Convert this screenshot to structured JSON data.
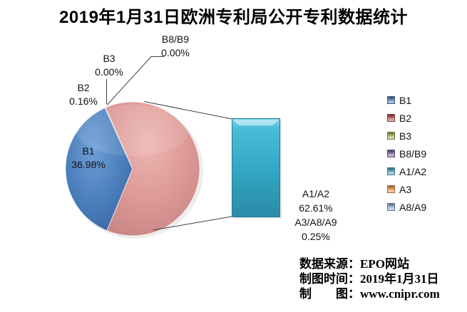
{
  "title": "2019年1月31日欧洲专利局公开专利数据统计",
  "chart_data": {
    "type": "pie",
    "subtype": "bar-of-pie",
    "title": "2019年1月31日欧洲专利局公开专利数据统计",
    "legend_position": "right",
    "grid": false,
    "pie_slices": [
      {
        "label": "B1",
        "pct": 36.98
      },
      {
        "label": "B2",
        "pct": 0.16
      },
      {
        "label": "B3",
        "pct": 0.0
      },
      {
        "label": "B8/B9",
        "pct": 0.0
      },
      {
        "label": "other (A1/A2 + A3/A8/A9, shown as bar)",
        "pct": 62.86
      }
    ],
    "bar_segments": [
      {
        "label": "A1/A2",
        "pct": 62.61
      },
      {
        "label": "A3/A8/A9",
        "pct": 0.25
      }
    ],
    "legend_entries": [
      "B1",
      "B2",
      "B3",
      "B8/B9",
      "A1/A2",
      "A3",
      "A8/A9"
    ]
  },
  "labels": {
    "b8b9": {
      "line1": "B8/B9",
      "line2": "0.00%"
    },
    "b3": {
      "line1": "B3",
      "line2": "0.00%"
    },
    "b2": {
      "line1": "B2",
      "line2": "0.16%"
    },
    "b1": {
      "line1": "B1",
      "line2": "36.98%"
    },
    "agroup": {
      "line1": "A1/A2",
      "line2": "62.61%",
      "line3": "A3/A8/A9",
      "line4": "0.25%"
    }
  },
  "legend": {
    "items": [
      {
        "label": "B1",
        "color": "#4f81bd"
      },
      {
        "label": "B2",
        "color": "#c0504d"
      },
      {
        "label": "B3",
        "color": "#9bbb59"
      },
      {
        "label": "B8/B9",
        "color": "#8064a2"
      },
      {
        "label": "A1/A2",
        "color": "#4bacc6"
      },
      {
        "label": "A3",
        "color": "#f79646"
      },
      {
        "label": "A8/A9",
        "color": "#95b3d7"
      }
    ]
  },
  "colors": {
    "pie_b1": "#4a7ebb",
    "pie_other": "#de9a98",
    "bar_fill": "#31aecb",
    "connector": "#404040"
  },
  "info": {
    "line1": "数据来源：EPO网站",
    "line2": "制图时间：2019年1月31日",
    "line3": "制　　图：www.cnipr.com"
  }
}
